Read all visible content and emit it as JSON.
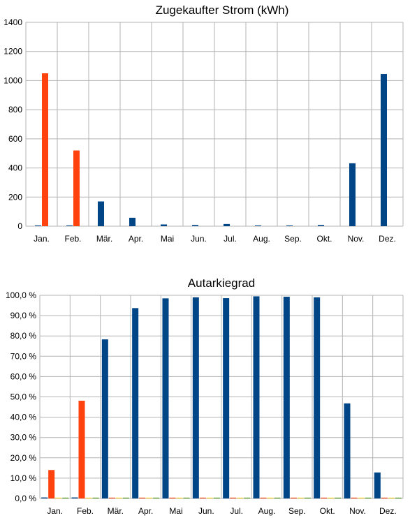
{
  "chart_data": [
    {
      "type": "bar",
      "title": "Zugekaufter Strom (kWh)",
      "categories": [
        "Jan.",
        "Feb.",
        "Mär.",
        "Apr.",
        "Mai",
        "Jun.",
        "Jul.",
        "Aug.",
        "Sep.",
        "Okt.",
        "Nov.",
        "Dez."
      ],
      "ylim": [
        0,
        1400
      ],
      "yticks": [
        0,
        200,
        400,
        600,
        800,
        1000,
        1200,
        1400
      ],
      "ytick_labels": [
        "0",
        "200",
        "400",
        "600",
        "800",
        "1000",
        "1200",
        "1400"
      ],
      "grid": true,
      "series": [
        {
          "color": "#004586",
          "values": [
            5,
            5,
            170,
            58,
            12,
            8,
            15,
            5,
            5,
            8,
            432,
            1045
          ]
        },
        {
          "color": "#ff420e",
          "values": [
            1050,
            520,
            0,
            0,
            0,
            0,
            0,
            0,
            0,
            0,
            0,
            0
          ]
        }
      ]
    },
    {
      "type": "bar",
      "title": "Autarkiegrad",
      "categories": [
        "Jan.",
        "Feb.",
        "Mär.",
        "Apr.",
        "Mai",
        "Jun.",
        "Jul.",
        "Aug.",
        "Sep.",
        "Okt.",
        "Nov.",
        "Dez."
      ],
      "ylim": [
        0,
        100
      ],
      "yticks": [
        0,
        10,
        20,
        30,
        40,
        50,
        60,
        70,
        80,
        90,
        100
      ],
      "ytick_labels": [
        "0,0 %",
        "10,0 %",
        "20,0 %",
        "30,0 %",
        "40,0 %",
        "50,0 %",
        "60,0 %",
        "70,0 %",
        "80,0 %",
        "90,0 %",
        "100,0 %"
      ],
      "grid": true,
      "series": [
        {
          "color": "#004586",
          "values": [
            0.5,
            0.5,
            78.3,
            93.7,
            98.5,
            99.0,
            98.6,
            99.5,
            99.3,
            99.0,
            46.8,
            12.8
          ]
        },
        {
          "color": "#ff420e",
          "values": [
            14.0,
            48.1,
            0.4,
            0.4,
            0.4,
            0.4,
            0.4,
            0.4,
            0.4,
            0.4,
            0.4,
            0.4
          ]
        },
        {
          "color": "#ffd320",
          "values": [
            0.4,
            0.4,
            0.4,
            0.4,
            0.4,
            0.4,
            0.4,
            0.4,
            0.4,
            0.4,
            0.4,
            0.4
          ]
        },
        {
          "color": "#579d1c",
          "values": [
            0.4,
            0.4,
            0.4,
            0.4,
            0.4,
            0.4,
            0.4,
            0.4,
            0.4,
            0.4,
            0.4,
            0.4
          ]
        }
      ]
    }
  ]
}
